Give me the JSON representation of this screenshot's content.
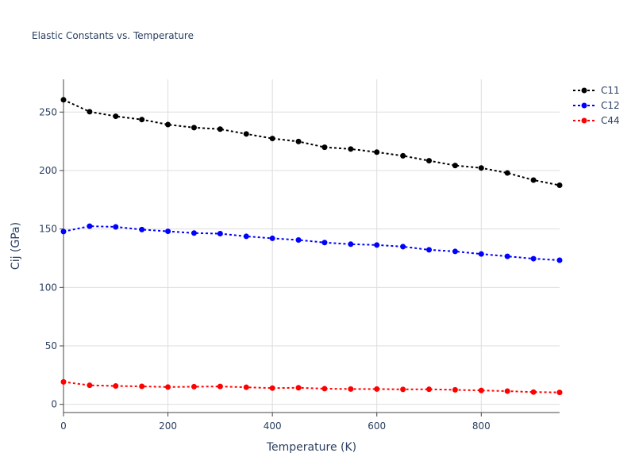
{
  "chart_data": {
    "type": "line",
    "title": "Elastic Constants vs. Temperature",
    "xlabel": "Temperature (K)",
    "ylabel": "Cij (GPa)",
    "xlim": [
      0,
      950
    ],
    "ylim": [
      -7,
      278
    ],
    "x_ticks": [
      0,
      200,
      400,
      600,
      800
    ],
    "y_ticks": [
      0,
      50,
      100,
      150,
      200,
      250
    ],
    "grid": true,
    "legend_position": "top-right",
    "x": [
      0,
      50,
      100,
      150,
      200,
      250,
      300,
      350,
      400,
      450,
      500,
      550,
      600,
      650,
      700,
      750,
      800,
      850,
      900,
      950
    ],
    "series": [
      {
        "name": "C11",
        "color": "#000000",
        "values": [
          260.5,
          250.3,
          246.4,
          243.6,
          239.3,
          236.7,
          235.4,
          231.3,
          227.4,
          224.8,
          219.9,
          218.4,
          215.7,
          212.6,
          208.4,
          204.3,
          202.2,
          197.9,
          191.8,
          187.4
        ]
      },
      {
        "name": "C12",
        "color": "#0000ff",
        "values": [
          147.8,
          152.4,
          151.8,
          149.5,
          148.0,
          146.5,
          146.0,
          143.7,
          142.0,
          140.6,
          138.4,
          137.0,
          136.3,
          134.9,
          132.2,
          130.8,
          128.6,
          126.6,
          124.6,
          123.3
        ]
      },
      {
        "name": "C44",
        "color": "#ff0000",
        "values": [
          19.2,
          16.3,
          15.7,
          15.4,
          14.8,
          15.1,
          15.3,
          14.6,
          13.9,
          14.2,
          13.4,
          13.1,
          13.1,
          12.8,
          12.9,
          12.4,
          11.9,
          11.3,
          10.5,
          10.2
        ]
      }
    ]
  }
}
